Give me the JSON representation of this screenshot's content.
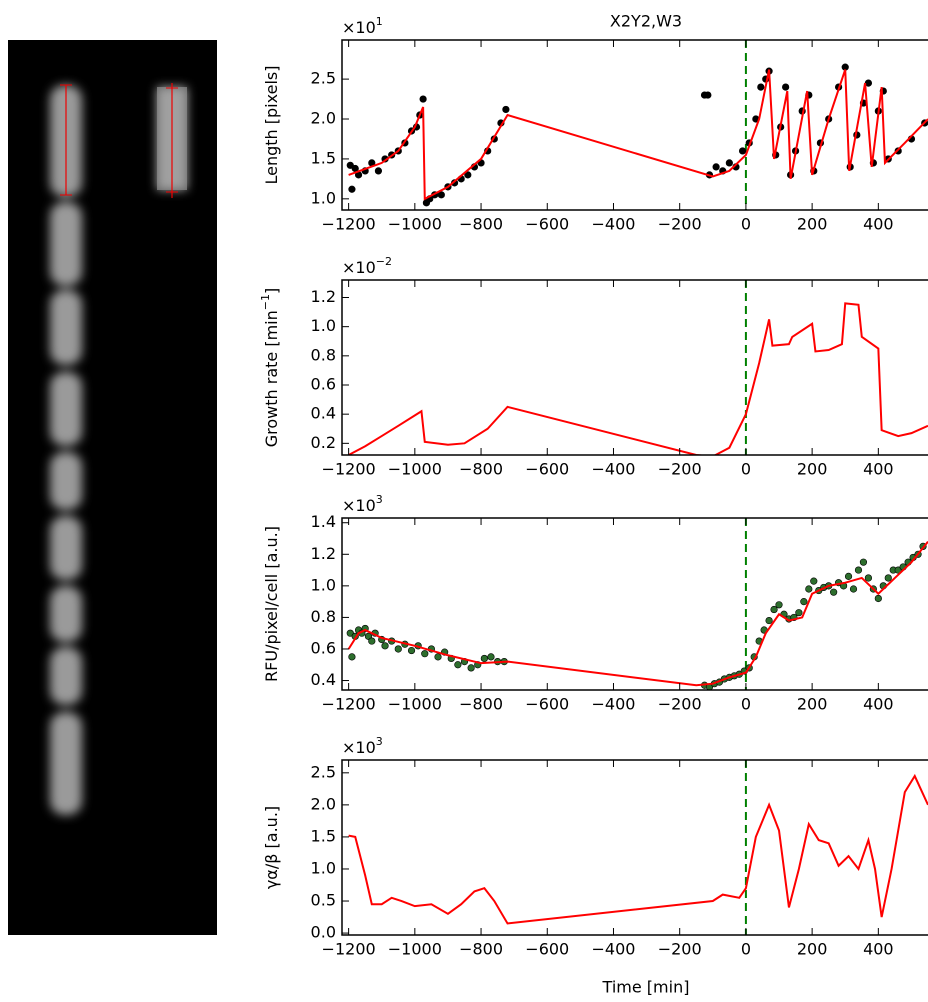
{
  "chart_data": [
    {
      "type": "line",
      "title": "X2Y2,W3",
      "ylabel": {
        "text": "Length [pixels]"
      },
      "y_multiplier": {
        "base": "×10",
        "exponent": "1"
      },
      "xlim": [
        -1220,
        550
      ],
      "ylim": [
        0.86,
        2.99
      ],
      "xticks": [
        {
          "value": -1200,
          "label": "−1200"
        },
        {
          "value": -1000,
          "label": "−1000"
        },
        {
          "value": -800,
          "label": "−800"
        },
        {
          "value": -600,
          "label": "−600"
        },
        {
          "value": -400,
          "label": "−400"
        },
        {
          "value": -200,
          "label": "−200"
        },
        0,
        200,
        400
      ],
      "yticks": [
        {
          "value": 1.0,
          "label": "1.0"
        },
        1.5,
        {
          "value": 2.0,
          "label": "2.0"
        },
        2.5
      ],
      "vline": {
        "x": 0,
        "color": "#008000"
      },
      "series": [
        {
          "color": "#ff0000",
          "x": [
            -1200,
            -1100,
            -1050,
            -1000,
            -975,
            -970,
            -900,
            -800,
            -720,
            -100,
            -50,
            0,
            40,
            70,
            85,
            125,
            135,
            185,
            200,
            250,
            300,
            312,
            360,
            380,
            410,
            420,
            480,
            550
          ],
          "values": [
            1.3,
            1.45,
            1.6,
            1.9,
            2.15,
            1.0,
            1.15,
            1.5,
            2.05,
            1.28,
            1.35,
            1.55,
            2.0,
            2.62,
            1.5,
            2.35,
            1.25,
            2.35,
            1.3,
            2.0,
            2.62,
            1.35,
            2.45,
            1.4,
            2.4,
            1.45,
            1.7,
            2.0
          ]
        }
      ],
      "points": {
        "color": "#000000",
        "x": [
          -1195,
          -1190,
          -1180,
          -1170,
          -1150,
          -1130,
          -1110,
          -1090,
          -1070,
          -1050,
          -1030,
          -1010,
          -995,
          -985,
          -975,
          -965,
          -955,
          -940,
          -920,
          -900,
          -880,
          -860,
          -840,
          -820,
          -800,
          -780,
          -760,
          -740,
          -725,
          -125,
          -115,
          -110,
          -90,
          -70,
          -50,
          -30,
          -10,
          10,
          30,
          45,
          60,
          70,
          90,
          105,
          120,
          135,
          150,
          170,
          190,
          205,
          225,
          250,
          280,
          300,
          315,
          335,
          355,
          370,
          385,
          400,
          415,
          430,
          460,
          500,
          540
        ],
        "y": [
          1.42,
          1.12,
          1.38,
          1.3,
          1.35,
          1.45,
          1.35,
          1.5,
          1.55,
          1.6,
          1.7,
          1.85,
          1.9,
          2.05,
          2.25,
          0.95,
          1.0,
          1.05,
          1.05,
          1.15,
          1.2,
          1.25,
          1.3,
          1.4,
          1.45,
          1.6,
          1.75,
          1.95,
          2.12,
          2.3,
          2.3,
          1.3,
          1.4,
          1.35,
          1.45,
          1.4,
          1.6,
          1.7,
          2.0,
          2.4,
          2.5,
          2.6,
          1.55,
          1.9,
          2.4,
          1.3,
          1.6,
          2.1,
          2.3,
          1.35,
          1.7,
          2.0,
          2.4,
          2.65,
          1.4,
          1.8,
          2.2,
          2.45,
          1.45,
          2.1,
          2.35,
          1.5,
          1.6,
          1.75,
          1.95
        ]
      }
    },
    {
      "type": "line",
      "ylabel": {
        "text": "Growth rate [min",
        "sup": "−1",
        "end": "]"
      },
      "y_multiplier": {
        "base": "×10",
        "exponent": "−2"
      },
      "xlim": [
        -1220,
        550
      ],
      "ylim": [
        0.12,
        1.32
      ],
      "xticks": [
        {
          "value": -1200,
          "label": "−1200"
        },
        {
          "value": -1000,
          "label": "−1000"
        },
        {
          "value": -800,
          "label": "−800"
        },
        {
          "value": -600,
          "label": "−600"
        },
        {
          "value": -400,
          "label": "−400"
        },
        {
          "value": -200,
          "label": "−200"
        },
        0,
        200,
        400
      ],
      "yticks": [
        0.2,
        0.4,
        0.6,
        0.8,
        {
          "value": 1.0,
          "label": "1.0"
        },
        1.2
      ],
      "vline": {
        "x": 0,
        "color": "#008000"
      },
      "series": [
        {
          "color": "#ff0000",
          "x": [
            -1200,
            -1150,
            -1050,
            -980,
            -970,
            -900,
            -850,
            -780,
            -720,
            -150,
            -100,
            -50,
            0,
            40,
            70,
            80,
            130,
            140,
            200,
            210,
            250,
            290,
            300,
            340,
            350,
            400,
            410,
            460,
            500,
            550
          ],
          "values": [
            0.12,
            0.18,
            0.32,
            0.42,
            0.21,
            0.19,
            0.2,
            0.3,
            0.45,
            0.12,
            0.11,
            0.17,
            0.4,
            0.75,
            1.05,
            0.87,
            0.88,
            0.93,
            1.02,
            0.83,
            0.84,
            0.88,
            1.16,
            1.15,
            0.93,
            0.85,
            0.29,
            0.25,
            0.27,
            0.32
          ]
        }
      ]
    },
    {
      "type": "line",
      "ylabel": {
        "text": "RFU/pixel/cell [a.u.]"
      },
      "y_multiplier": {
        "base": "×10",
        "exponent": "3"
      },
      "xlim": [
        -1220,
        550
      ],
      "ylim": [
        0.34,
        1.43
      ],
      "xticks": [
        {
          "value": -1200,
          "label": "−1200"
        },
        {
          "value": -1000,
          "label": "−1000"
        },
        {
          "value": -800,
          "label": "−800"
        },
        {
          "value": -600,
          "label": "−600"
        },
        {
          "value": -400,
          "label": "−400"
        },
        {
          "value": -200,
          "label": "−200"
        },
        0,
        200,
        400
      ],
      "yticks": [
        0.4,
        0.6,
        0.8,
        {
          "value": 1.0,
          "label": "1.0"
        },
        1.2,
        1.4
      ],
      "vline": {
        "x": 0,
        "color": "#008000"
      },
      "series": [
        {
          "color": "#ff0000",
          "x": [
            -1200,
            -1170,
            -1150,
            -1100,
            -1000,
            -900,
            -800,
            -720,
            -150,
            -100,
            -50,
            0,
            30,
            60,
            100,
            130,
            170,
            200,
            250,
            300,
            350,
            400,
            450,
            500,
            550
          ],
          "values": [
            0.6,
            0.7,
            0.72,
            0.67,
            0.62,
            0.56,
            0.51,
            0.52,
            0.37,
            0.38,
            0.42,
            0.45,
            0.55,
            0.7,
            0.82,
            0.78,
            0.8,
            0.95,
            1.0,
            1.02,
            1.05,
            0.95,
            1.05,
            1.15,
            1.28
          ]
        }
      ],
      "points": {
        "color": "#2d6e2d",
        "x": [
          -1195,
          -1190,
          -1180,
          -1170,
          -1160,
          -1150,
          -1140,
          -1130,
          -1120,
          -1100,
          -1090,
          -1070,
          -1050,
          -1030,
          -1010,
          -990,
          -970,
          -950,
          -930,
          -910,
          -890,
          -870,
          -850,
          -830,
          -810,
          -790,
          -770,
          -750,
          -730,
          -125,
          -110,
          -95,
          -80,
          -65,
          -50,
          -35,
          -20,
          -5,
          10,
          25,
          40,
          55,
          70,
          85,
          100,
          115,
          130,
          145,
          160,
          175,
          190,
          205,
          220,
          235,
          250,
          265,
          280,
          295,
          310,
          325,
          340,
          355,
          370,
          385,
          400,
          415,
          430,
          445,
          460,
          475,
          490,
          505,
          520,
          535
        ],
        "y": [
          0.7,
          0.55,
          0.68,
          0.72,
          0.7,
          0.73,
          0.68,
          0.65,
          0.7,
          0.66,
          0.62,
          0.65,
          0.6,
          0.63,
          0.59,
          0.62,
          0.57,
          0.6,
          0.55,
          0.58,
          0.54,
          0.5,
          0.52,
          0.48,
          0.5,
          0.54,
          0.55,
          0.52,
          0.52,
          0.37,
          0.36,
          0.38,
          0.39,
          0.41,
          0.42,
          0.43,
          0.44,
          0.46,
          0.48,
          0.55,
          0.65,
          0.72,
          0.78,
          0.85,
          0.88,
          0.82,
          0.79,
          0.8,
          0.83,
          0.9,
          0.98,
          1.03,
          0.97,
          0.99,
          1.0,
          0.96,
          1.02,
          1.0,
          1.06,
          0.98,
          1.1,
          1.15,
          1.05,
          0.98,
          0.92,
          1.0,
          1.05,
          1.1,
          1.1,
          1.12,
          1.15,
          1.18,
          1.2,
          1.25
        ]
      }
    },
    {
      "type": "line",
      "ylabel": {
        "text": "γα/β [a.u.]"
      },
      "y_multiplier": {
        "base": "×10",
        "exponent": "3"
      },
      "xlabel": "Time [min]",
      "xlim": [
        -1220,
        550
      ],
      "ylim": [
        -0.03,
        2.7
      ],
      "xticks": [
        {
          "value": -1200,
          "label": "−1200"
        },
        {
          "value": -1000,
          "label": "−1000"
        },
        {
          "value": -800,
          "label": "−800"
        },
        {
          "value": -600,
          "label": "−600"
        },
        {
          "value": -400,
          "label": "−400"
        },
        {
          "value": -200,
          "label": "−200"
        },
        0,
        200,
        400
      ],
      "yticks": [
        {
          "value": 0.0,
          "label": "0.0"
        },
        0.5,
        {
          "value": 1.0,
          "label": "1.0"
        },
        1.5,
        {
          "value": 2.0,
          "label": "2.0"
        },
        2.5
      ],
      "vline": {
        "x": 0,
        "color": "#008000"
      },
      "series": [
        {
          "color": "#ff0000",
          "x": [
            -1200,
            -1180,
            -1150,
            -1130,
            -1100,
            -1070,
            -1040,
            -1000,
            -950,
            -900,
            -860,
            -820,
            -790,
            -760,
            -720,
            -100,
            -70,
            -20,
            0,
            30,
            70,
            100,
            130,
            160,
            190,
            220,
            250,
            280,
            310,
            340,
            370,
            390,
            410,
            440,
            480,
            510,
            550
          ],
          "values": [
            1.52,
            1.5,
            0.9,
            0.45,
            0.45,
            0.55,
            0.5,
            0.42,
            0.45,
            0.3,
            0.45,
            0.65,
            0.7,
            0.5,
            0.15,
            0.5,
            0.6,
            0.55,
            0.7,
            1.5,
            2.0,
            1.6,
            0.4,
            1.0,
            1.7,
            1.45,
            1.4,
            1.05,
            1.2,
            1.0,
            1.45,
            1.0,
            0.25,
            1.0,
            2.2,
            2.45,
            2.0
          ]
        }
      ]
    }
  ]
}
